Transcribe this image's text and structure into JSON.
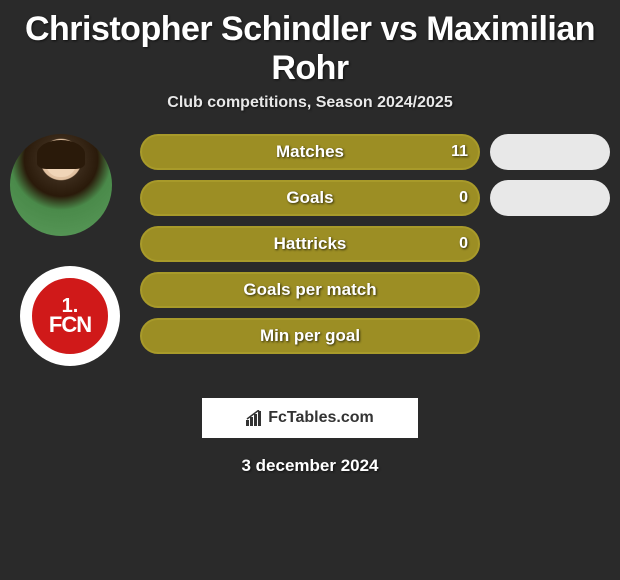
{
  "title": "Christopher Schindler vs Maximilian Rohr",
  "subtitle": "Club competitions, Season 2024/2025",
  "club_badge": {
    "top": "1.",
    "bottom": "FCN",
    "bg_color": "#d01919"
  },
  "accent_color": "#a89a2a",
  "stat_fill_color": "#9c8e24",
  "pill_bg": "#e8e8e8",
  "stats": [
    {
      "label": "Matches",
      "value_left": "11",
      "show_right_pill": true
    },
    {
      "label": "Goals",
      "value_left": "0",
      "show_right_pill": true
    },
    {
      "label": "Hattricks",
      "value_left": "0",
      "show_right_pill": false
    },
    {
      "label": "Goals per match",
      "value_left": "",
      "show_right_pill": false
    },
    {
      "label": "Min per goal",
      "value_left": "",
      "show_right_pill": false
    }
  ],
  "watermark": "FcTables.com",
  "date": "3 december 2024"
}
